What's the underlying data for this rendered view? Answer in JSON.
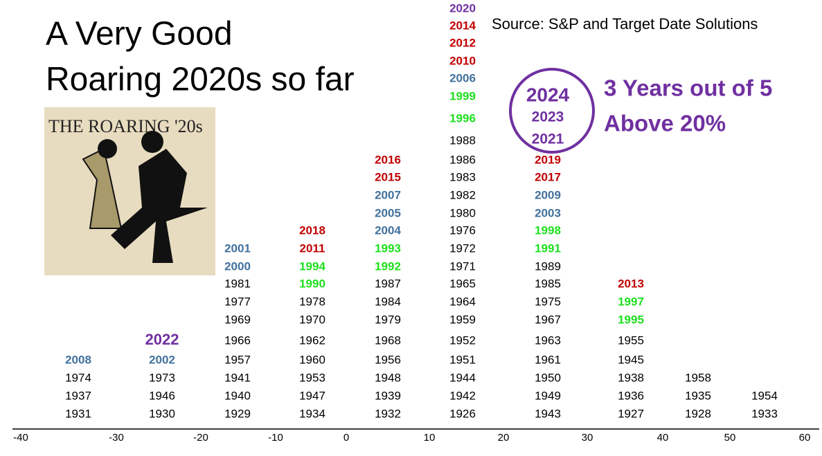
{
  "title": [
    "A Very Good",
    "Roaring 2020s so far"
  ],
  "source": "Source: S&P and Target Date Solutions",
  "callout": [
    "3 Years out of 5",
    "Above 20%"
  ],
  "image_caption": "THE ROARING '20s",
  "palette": {
    "k": "#000000",
    "b": "#41719c",
    "g": "#1ee01e",
    "r": "#c00000",
    "p": "#7030a0"
  },
  "columns": [
    [
      [
        1931,
        "k"
      ],
      [
        1937,
        "k"
      ],
      [
        1974,
        "k"
      ],
      [
        2008,
        "b"
      ]
    ],
    [
      [
        1930,
        "k"
      ],
      [
        1946,
        "k"
      ],
      [
        1973,
        "k"
      ],
      [
        2002,
        "b"
      ],
      [
        2022,
        "p"
      ]
    ],
    [
      [
        1929,
        "k"
      ],
      [
        1940,
        "k"
      ],
      [
        1941,
        "k"
      ],
      [
        1957,
        "k"
      ],
      [
        1966,
        "k"
      ],
      [
        1969,
        "k"
      ],
      [
        1977,
        "k"
      ],
      [
        1981,
        "k"
      ],
      [
        2000,
        "b"
      ],
      [
        2001,
        "b"
      ]
    ],
    [
      [
        1934,
        "k"
      ],
      [
        1947,
        "k"
      ],
      [
        1953,
        "k"
      ],
      [
        1960,
        "k"
      ],
      [
        1962,
        "k"
      ],
      [
        1970,
        "k"
      ],
      [
        1978,
        "k"
      ],
      [
        1990,
        "g"
      ],
      [
        1994,
        "g"
      ],
      [
        2011,
        "r"
      ],
      [
        2018,
        "r"
      ]
    ],
    [
      [
        1932,
        "k"
      ],
      [
        1939,
        "k"
      ],
      [
        1948,
        "k"
      ],
      [
        1956,
        "k"
      ],
      [
        1968,
        "k"
      ],
      [
        1979,
        "k"
      ],
      [
        1984,
        "k"
      ],
      [
        1987,
        "k"
      ],
      [
        1992,
        "g"
      ],
      [
        1993,
        "g"
      ],
      [
        2004,
        "b"
      ],
      [
        2005,
        "b"
      ],
      [
        2007,
        "b"
      ],
      [
        2015,
        "r"
      ],
      [
        2016,
        "r"
      ]
    ],
    [
      [
        1926,
        "k"
      ],
      [
        1942,
        "k"
      ],
      [
        1944,
        "k"
      ],
      [
        1951,
        "k"
      ],
      [
        1952,
        "k"
      ],
      [
        1959,
        "k"
      ],
      [
        1964,
        "k"
      ],
      [
        1965,
        "k"
      ],
      [
        1971,
        "k"
      ],
      [
        1972,
        "k"
      ],
      [
        1976,
        "k"
      ],
      [
        1980,
        "k"
      ],
      [
        1982,
        "k"
      ],
      [
        1983,
        "k"
      ],
      [
        1986,
        "k"
      ],
      [
        1988,
        "k"
      ],
      [
        1996,
        "g"
      ],
      [
        1999,
        "g"
      ],
      [
        2006,
        "b"
      ],
      [
        2010,
        "r"
      ],
      [
        2012,
        "r"
      ],
      [
        2014,
        "r"
      ],
      [
        2020,
        "p"
      ]
    ],
    [
      [
        1943,
        "k"
      ],
      [
        1949,
        "k"
      ],
      [
        1950,
        "k"
      ],
      [
        1961,
        "k"
      ],
      [
        1963,
        "k"
      ],
      [
        1967,
        "k"
      ],
      [
        1975,
        "k"
      ],
      [
        1985,
        "k"
      ],
      [
        1989,
        "k"
      ],
      [
        1991,
        "g"
      ],
      [
        1998,
        "g"
      ],
      [
        2003,
        "b"
      ],
      [
        2009,
        "b"
      ],
      [
        2017,
        "r"
      ],
      [
        2019,
        "r"
      ],
      [
        2021,
        "p"
      ],
      [
        2023,
        "p"
      ],
      [
        2024,
        "p"
      ]
    ],
    [
      [
        1927,
        "k"
      ],
      [
        1936,
        "k"
      ],
      [
        1938,
        "k"
      ],
      [
        1945,
        "k"
      ],
      [
        1955,
        "k"
      ],
      [
        1995,
        "g"
      ],
      [
        1997,
        "g"
      ],
      [
        2013,
        "r"
      ]
    ],
    [
      [
        1928,
        "k"
      ],
      [
        1935,
        "k"
      ],
      [
        1958,
        "k"
      ]
    ],
    [
      [
        1933,
        "k"
      ],
      [
        1954,
        "k"
      ]
    ]
  ],
  "axis_ticks": [
    -40,
    -30,
    -20,
    -10,
    0,
    10,
    20,
    30,
    40,
    50,
    60
  ]
}
